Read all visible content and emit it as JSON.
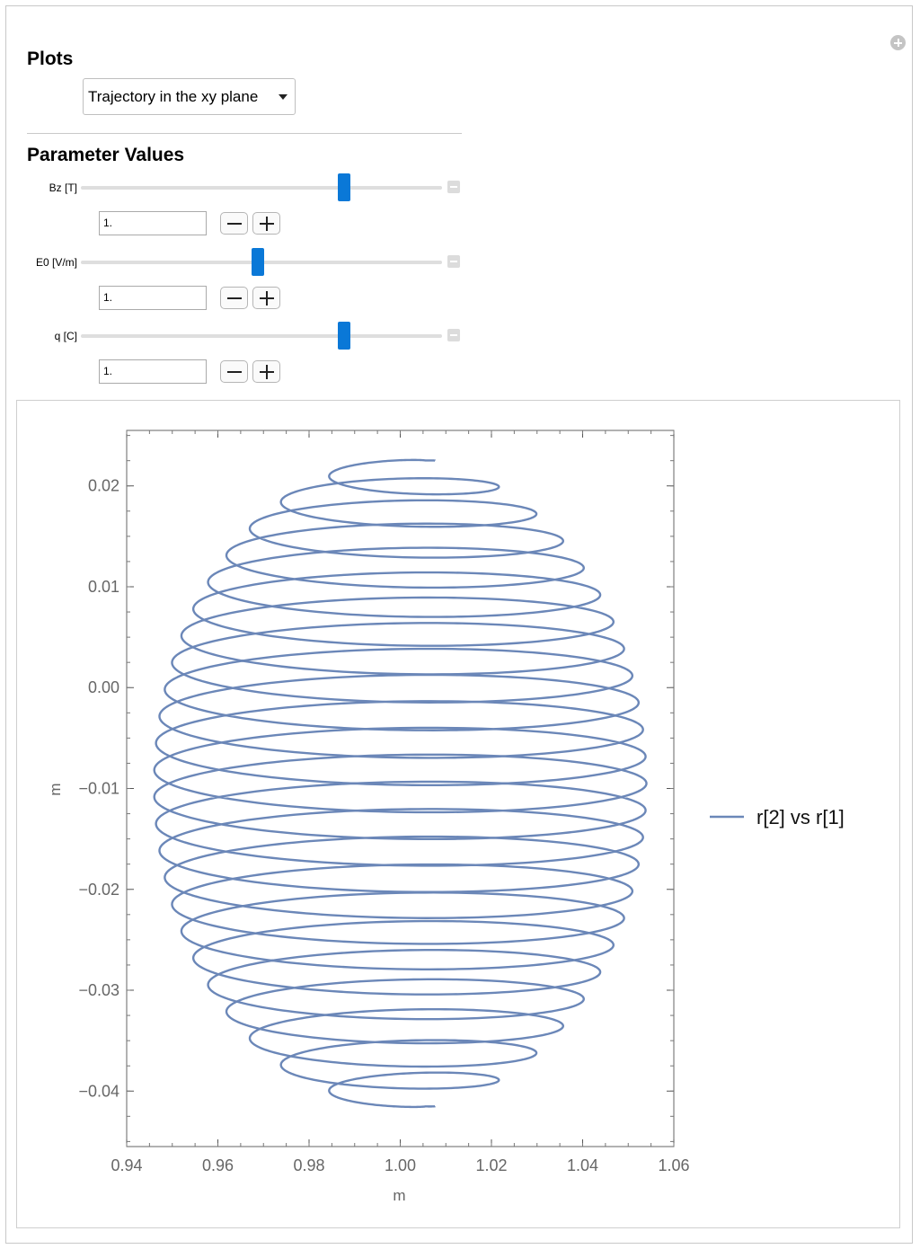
{
  "plots_section": {
    "title": "Plots",
    "dropdown_value": "Trajectory in the xy plane"
  },
  "parameters_section": {
    "title": "Parameter Values",
    "sliders": [
      {
        "label": "Bz [T]",
        "value": "1.",
        "slider_fraction": 0.73
      },
      {
        "label": "E0 [V/m]",
        "value": "1.",
        "slider_fraction": 0.49
      },
      {
        "label": "q [C]",
        "value": "1.",
        "slider_fraction": 0.73
      }
    ]
  },
  "colors": {
    "accent": "#0a78d7",
    "series": "#6b87b8",
    "frame": "#666666"
  },
  "chart_data": {
    "type": "line",
    "title": "",
    "xlabel": "m",
    "ylabel": "m",
    "xlim": [
      0.94,
      1.06
    ],
    "ylim": [
      -0.0455,
      0.0255
    ],
    "xticks": [
      "0.94",
      "0.96",
      "0.98",
      "1.00",
      "1.02",
      "1.04",
      "1.06"
    ],
    "xtick_values": [
      0.94,
      0.96,
      0.98,
      1.0,
      1.02,
      1.04,
      1.06
    ],
    "yticks": [
      "0.02",
      "0.01",
      "0.00",
      "−0.01",
      "−0.02",
      "−0.03",
      "−0.04"
    ],
    "ytick_values": [
      0.02,
      0.01,
      0.0,
      -0.01,
      -0.02,
      -0.03,
      -0.04
    ],
    "legend_position": "right",
    "series": [
      {
        "name": "r[2] vs r[1]",
        "description_params": {
          "x_center": 1.0,
          "y_center": -0.0085,
          "x_half_width": 0.054,
          "y_top": 0.0225,
          "y_bottom": -0.0415,
          "turns": 24
        }
      }
    ]
  }
}
